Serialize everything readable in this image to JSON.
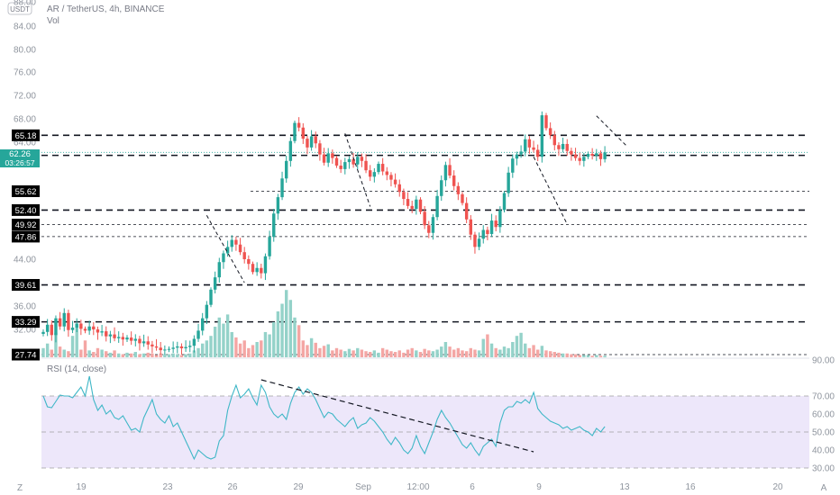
{
  "header": {
    "symbol": "AR / TetherUS, 4h, BINANCE",
    "volume_label": "Vol",
    "currency_badge": "USDT",
    "rsi_label": "RSI (14, close)"
  },
  "colors": {
    "up": "#26a69a",
    "down": "#ef5350",
    "up_volume": "#94d2c9",
    "down_volume": "#f4a6a4",
    "rsi_line": "#3fb7c7",
    "rsi_band": "#ede7fa",
    "level_label_bg": "#000000",
    "current_price_bg": "#26a69a"
  },
  "chart_data": [
    {
      "type": "candlestick",
      "y_axis_ticks": [
        "88.00",
        "84.00",
        "80.00",
        "76.00",
        "72.00",
        "68.00",
        "64.00",
        "44.00",
        "36.00",
        "32.00"
      ],
      "x_axis_ticks": [
        "19",
        "23",
        "26",
        "29",
        "Sep",
        "12:00",
        "6",
        "9",
        "13",
        "16",
        "20"
      ],
      "ylim": [
        28,
        88
      ],
      "horizontal_levels": [
        "65.18",
        "61.75",
        "55.62",
        "52.40",
        "49.92",
        "47.86",
        "39.61",
        "33.29",
        "27.74"
      ],
      "current_price": "62.26",
      "countdown": "03:26:57",
      "trendlines": [
        {
          "from": [
            39,
            51.5
          ],
          "to": [
            48,
            40
          ]
        },
        {
          "from": [
            72,
            65.5
          ],
          "to": [
            78,
            53
          ]
        },
        {
          "from": [
            117,
            61.5
          ],
          "to": [
            125,
            50
          ]
        },
        {
          "from": [
            132,
            68.5
          ],
          "to": [
            139,
            63.5
          ]
        }
      ],
      "close": [
        31.6,
        32.8,
        31.1,
        33.9,
        32.5,
        34.8,
        31.9,
        32.3,
        33.0,
        32.1,
        31.8,
        32.5,
        32.0,
        31.5,
        31.7,
        30.9,
        31.2,
        30.6,
        30.8,
        30.4,
        30.7,
        30.2,
        30.5,
        29.8,
        30.1,
        29.6,
        29.3,
        29.1,
        28.7,
        28.8,
        28.9,
        29.1,
        29.3,
        29.0,
        29.2,
        29.4,
        30.5,
        31.8,
        33.9,
        36.2,
        38.8,
        40.9,
        43.5,
        45.0,
        46.1,
        47.3,
        46.5,
        45.2,
        44.0,
        43.2,
        41.8,
        42.5,
        41.6,
        44.5,
        47.8,
        51.8,
        54.6,
        57.8,
        60.8,
        64.2,
        67.3,
        66.5,
        64.6,
        63.1,
        65.0,
        63.8,
        61.9,
        60.5,
        62.1,
        61.3,
        60.0,
        59.4,
        60.6,
        61.1,
        60.2,
        61.5,
        60.8,
        59.2,
        58.1,
        58.9,
        60.3,
        59.0,
        58.4,
        57.6,
        56.8,
        55.5,
        54.3,
        53.1,
        52.6,
        54.2,
        52.1,
        49.8,
        48.5,
        51.2,
        54.8,
        57.5,
        60.1,
        58.3,
        56.5,
        55.1,
        53.6,
        50.8,
        48.2,
        46.1,
        47.5,
        49.0,
        48.3,
        50.6,
        49.5,
        52.4,
        55.3,
        58.8,
        61.2,
        61.9,
        62.4,
        64.5,
        63.1,
        62.7,
        61.5,
        68.6,
        66.4,
        65.2,
        63.5,
        62.8,
        63.7,
        62.5,
        61.9,
        61.3,
        60.8,
        61.5,
        62.0,
        61.7,
        62.1,
        61.1,
        62.26
      ],
      "volume": [
        0.12,
        0.18,
        0.1,
        0.32,
        0.14,
        0.1,
        0.08,
        0.28,
        0.42,
        0.1,
        0.22,
        0.09,
        0.07,
        0.12,
        0.1,
        0.08,
        0.06,
        0.09,
        0.05,
        0.04,
        0.06,
        0.05,
        0.07,
        0.04,
        0.05,
        0.06,
        0.05,
        0.03,
        0.05,
        0.04,
        0.04,
        0.05,
        0.04,
        0.03,
        0.04,
        0.05,
        0.09,
        0.12,
        0.18,
        0.22,
        0.28,
        0.4,
        0.52,
        0.44,
        0.56,
        0.33,
        0.26,
        0.18,
        0.22,
        0.12,
        0.16,
        0.2,
        0.22,
        0.33,
        0.3,
        0.46,
        0.6,
        0.7,
        0.88,
        0.75,
        0.52,
        0.42,
        0.22,
        0.16,
        0.25,
        0.19,
        0.12,
        0.15,
        0.17,
        0.09,
        0.12,
        0.1,
        0.08,
        0.11,
        0.09,
        0.12,
        0.1,
        0.08,
        0.07,
        0.09,
        0.06,
        0.12,
        0.1,
        0.08,
        0.07,
        0.09,
        0.06,
        0.1,
        0.12,
        0.09,
        0.07,
        0.11,
        0.09,
        0.08,
        0.1,
        0.14,
        0.2,
        0.14,
        0.1,
        0.12,
        0.09,
        0.08,
        0.12,
        0.1,
        0.09,
        0.24,
        0.3,
        0.18,
        0.12,
        0.1,
        0.14,
        0.12,
        0.2,
        0.28,
        0.32,
        0.18,
        0.12,
        0.16,
        0.1,
        0.15,
        0.09,
        0.08,
        0.07,
        0.06,
        0.05,
        0.05,
        0.04,
        0.04,
        0.03,
        0.03,
        0.03,
        0.02,
        0.03,
        0.02,
        0.02
      ],
      "rsi": [
        70.0,
        64.0,
        63.5,
        67.0,
        70.5,
        70.0,
        70.0,
        69.0,
        72.0,
        75.0,
        70.0,
        81.0,
        68.0,
        62.0,
        65.0,
        60.0,
        62.0,
        58.0,
        57.0,
        59.0,
        55.0,
        51.0,
        52.0,
        50.0,
        58.0,
        63.0,
        68.0,
        60.0,
        57.0,
        55.0,
        59.0,
        53.0,
        55.0,
        50.0,
        45.0,
        40.0,
        35.0,
        40.0,
        38.0,
        36.0,
        35.0,
        36.0,
        45.0,
        48.0,
        62.0,
        70.0,
        76.0,
        69.0,
        71.0,
        74.0,
        69.0,
        65.0,
        76.0,
        72.0,
        64.0,
        60.0,
        58.0,
        60.0,
        57.0,
        66.0,
        72.0,
        75.0,
        71.0,
        74.0,
        72.0,
        68.0,
        63.0,
        58.0,
        61.0,
        60.0,
        57.0,
        55.0,
        53.0,
        56.0,
        58.0,
        52.0,
        54.0,
        55.0,
        58.0,
        56.0,
        53.0,
        50.0,
        46.0,
        43.0,
        47.0,
        44.0,
        40.0,
        38.0,
        41.0,
        48.0,
        42.0,
        38.0,
        44.0,
        50.0,
        57.0,
        62.0,
        58.0,
        55.0,
        51.0,
        47.0,
        43.0,
        41.0,
        44.0,
        40.0,
        37.0,
        42.0,
        44.0,
        46.0,
        42.0,
        55.0,
        62.0,
        64.0,
        64.0,
        67.0,
        66.0,
        68.0,
        66.0,
        72.0,
        63.0,
        60.0,
        58.0,
        56.0,
        55.0,
        54.0,
        52.0,
        53.0,
        51.0,
        52.0,
        53.0,
        51.0,
        50.0,
        48.0,
        52.0,
        50.0,
        53.0
      ],
      "rsi_ticks": [
        "90.00",
        "70.00",
        "60.00",
        "50.00",
        "40.00",
        "30.00"
      ],
      "rsi_trendlines": [
        {
          "from": [
            52,
            79
          ],
          "to": [
            117,
            39
          ]
        }
      ]
    }
  ],
  "footer": {
    "left_icon": "Z",
    "right_icon": "A"
  }
}
